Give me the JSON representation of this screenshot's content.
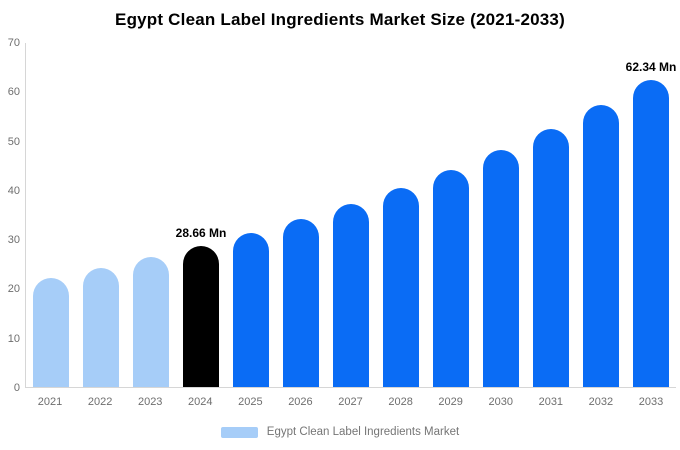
{
  "title": "Egypt Clean Label Ingredients Market Size (2021-2033)",
  "legend": {
    "label": "Egypt Clean Label Ingredients Market",
    "swatch_color": "#a6cdf8"
  },
  "colors": {
    "historical_bar": "#a6cdf8",
    "base_year_bar": "#000000",
    "forecast_bar": "#0a6cf5",
    "axis_line": "#d6d6d6",
    "tick_text": "#6e6e6e",
    "legend_text": "#757575",
    "title_text": "#000000"
  },
  "chart_data": {
    "type": "bar",
    "title": "Egypt Clean Label Ingredients Market Size (2021-2033)",
    "xlabel": "",
    "ylabel": "",
    "ylim": [
      0,
      70
    ],
    "yticks": [
      0,
      10,
      20,
      30,
      40,
      50,
      60,
      70
    ],
    "grid": false,
    "legend_position": "bottom",
    "categories": [
      "2021",
      "2022",
      "2023",
      "2024",
      "2025",
      "2026",
      "2027",
      "2028",
      "2029",
      "2030",
      "2031",
      "2032",
      "2033"
    ],
    "values": [
      22.13,
      24.12,
      26.3,
      28.66,
      31.24,
      34.06,
      37.13,
      40.47,
      44.12,
      48.1,
      52.43,
      57.16,
      62.34
    ],
    "bar_roles": [
      "historical",
      "historical",
      "historical",
      "base_year",
      "forecast",
      "forecast",
      "forecast",
      "forecast",
      "forecast",
      "forecast",
      "forecast",
      "forecast",
      "forecast"
    ],
    "point_labels": {
      "2024": "28.66 Mn",
      "2033": "62.34 Mn"
    },
    "series_name": "Egypt Clean Label Ingredients Market"
  }
}
